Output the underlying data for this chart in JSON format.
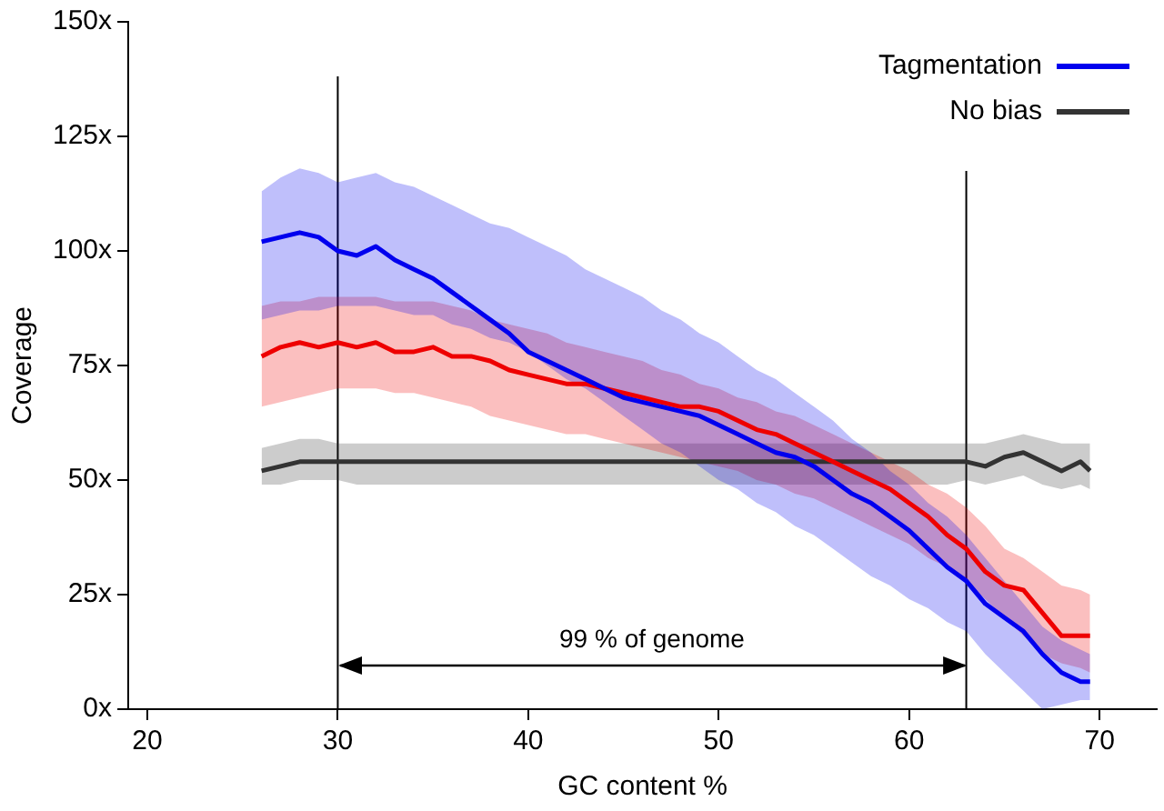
{
  "chart_data": {
    "type": "line",
    "xlabel": "GC content %",
    "ylabel": "Coverage",
    "x": [
      26,
      27,
      28,
      29,
      30,
      31,
      32,
      33,
      34,
      35,
      36,
      37,
      38,
      39,
      40,
      41,
      42,
      43,
      44,
      45,
      46,
      47,
      48,
      49,
      50,
      51,
      52,
      53,
      54,
      55,
      56,
      57,
      58,
      59,
      60,
      61,
      62,
      63,
      64,
      65,
      66,
      67,
      68,
      69,
      69.5
    ],
    "series": [
      {
        "name": "Tagmentation",
        "color": "#0000ee",
        "values": [
          102,
          103,
          104,
          103,
          100,
          99,
          101,
          98,
          96,
          94,
          91,
          88,
          85,
          82,
          78,
          76,
          74,
          72,
          70,
          68,
          67,
          66,
          65,
          64,
          62,
          60,
          58,
          56,
          55,
          53,
          50,
          47,
          45,
          42,
          39,
          35,
          31,
          28,
          23,
          20,
          17,
          12,
          8,
          6,
          6
        ],
        "upper": [
          113,
          116,
          118,
          117,
          115,
          116,
          117,
          115,
          114,
          112,
          110,
          108,
          106,
          105,
          103,
          101,
          99,
          96,
          94,
          92,
          90,
          87,
          85,
          82,
          80,
          77,
          74,
          72,
          69,
          66,
          63,
          59,
          56,
          52,
          49,
          45,
          42,
          38,
          33,
          28,
          23,
          18,
          15,
          13,
          12
        ],
        "lower": [
          85,
          86,
          87,
          87,
          88,
          88,
          88,
          87,
          86,
          86,
          84,
          83,
          81,
          80,
          78,
          75,
          72,
          70,
          67,
          64,
          61,
          58,
          56,
          53,
          50,
          48,
          45,
          43,
          40,
          38,
          35,
          32,
          29,
          27,
          24,
          22,
          19,
          17,
          12,
          8,
          4,
          0,
          1,
          2,
          2
        ]
      },
      {
        "color": "#ee0000",
        "values": [
          77,
          79,
          80,
          79,
          80,
          79,
          80,
          78,
          78,
          79,
          77,
          77,
          76,
          74,
          73,
          72,
          71,
          71,
          70,
          69,
          68,
          67,
          66,
          66,
          65,
          63,
          61,
          60,
          58,
          56,
          54,
          52,
          50,
          48,
          45,
          42,
          38,
          35,
          30,
          27,
          26,
          21,
          16,
          16,
          16
        ],
        "upper": [
          88,
          89,
          89,
          90,
          90,
          90,
          90,
          89,
          89,
          89,
          88,
          87,
          85,
          84,
          83,
          82,
          80,
          79,
          78,
          77,
          76,
          74,
          73,
          71,
          70,
          68,
          67,
          65,
          64,
          62,
          60,
          58,
          56,
          54,
          52,
          49,
          47,
          44,
          40,
          35,
          33,
          30,
          27,
          26,
          25
        ],
        "lower": [
          66,
          67,
          68,
          69,
          70,
          70,
          70,
          69,
          69,
          68,
          67,
          66,
          64,
          63,
          62,
          61,
          60,
          60,
          59,
          58,
          57,
          56,
          55,
          54,
          53,
          52,
          50,
          49,
          47,
          46,
          44,
          42,
          40,
          38,
          36,
          33,
          31,
          28,
          24,
          20,
          16,
          12,
          10,
          9,
          8
        ]
      },
      {
        "name": "No bias",
        "color": "#333333",
        "values": [
          52,
          53,
          54,
          54,
          54,
          54,
          54,
          54,
          54,
          54,
          54,
          54,
          54,
          54,
          54,
          54,
          54,
          54,
          54,
          54,
          54,
          54,
          54,
          54,
          54,
          54,
          54,
          54,
          54,
          54,
          54,
          54,
          54,
          54,
          54,
          54,
          54,
          54,
          53,
          55,
          56,
          54,
          52,
          54,
          52
        ],
        "upper": [
          57,
          58,
          59,
          59,
          58,
          58,
          58,
          58,
          58,
          58,
          58,
          58,
          58,
          58,
          58,
          58,
          58,
          58,
          58,
          58,
          58,
          58,
          58,
          58,
          58,
          58,
          58,
          58,
          58,
          58,
          58,
          58,
          58,
          58,
          58,
          58,
          58,
          58,
          58,
          59,
          60,
          59,
          58,
          58,
          58
        ],
        "lower": [
          49,
          49,
          50,
          50,
          50,
          49,
          49,
          49,
          49,
          49,
          49,
          49,
          49,
          49,
          49,
          49,
          49,
          49,
          49,
          49,
          49,
          49,
          49,
          49,
          49,
          49,
          49,
          49,
          49,
          49,
          49,
          49,
          49,
          49,
          49,
          49,
          49,
          50,
          49,
          50,
          51,
          49,
          48,
          49,
          48
        ]
      }
    ],
    "xlim": [
      19,
      73
    ],
    "xticks": [
      20,
      30,
      40,
      50,
      60,
      70
    ],
    "ylim": [
      0,
      150
    ],
    "yticks": [
      {
        "value": 0,
        "label": "0x"
      },
      {
        "value": 25,
        "label": "25x"
      },
      {
        "value": 50,
        "label": "50x"
      },
      {
        "value": 75,
        "label": "75x"
      },
      {
        "value": 100,
        "label": "100x"
      },
      {
        "value": 125,
        "label": "125x"
      },
      {
        "value": 150,
        "label": "150x"
      }
    ],
    "ref_lines": [
      {
        "axis": "x",
        "value": 30,
        "color": "#000000"
      },
      {
        "axis": "x",
        "value": 63,
        "color": "#000000"
      }
    ],
    "annotations": [
      "99 % of genome"
    ],
    "legend": "top right",
    "grid": false,
    "marker": "none",
    "line_style": "solid"
  }
}
